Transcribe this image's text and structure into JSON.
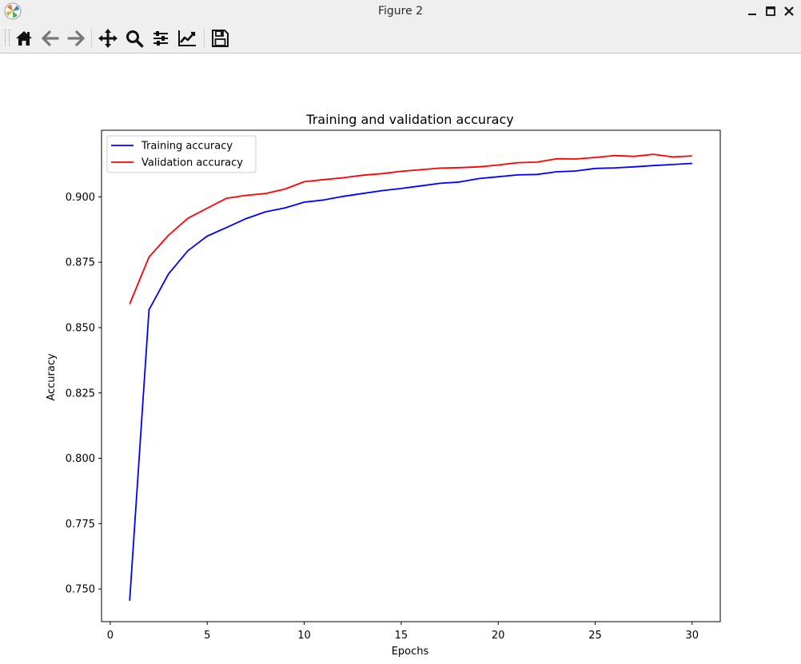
{
  "window": {
    "title": "Figure 2"
  },
  "toolbar": {
    "icons": [
      "home-icon",
      "back-arrow-icon",
      "forward-arrow-icon",
      "pan-move-icon",
      "zoom-magnifier-icon",
      "subplots-sliders-icon",
      "customize-chart-icon",
      "save-floppy-icon"
    ]
  },
  "colors": {
    "training": "#0000ff",
    "validation": "#ff0000",
    "chrome": "#efefef"
  },
  "chart_data": {
    "type": "line",
    "title": "Training and validation accuracy",
    "xlabel": "Epochs",
    "ylabel": "Accuracy",
    "xlim": [
      -0.45,
      31.45
    ],
    "ylim": [
      0.7375,
      0.9255
    ],
    "xticks": [
      0,
      5,
      10,
      15,
      20,
      25,
      30
    ],
    "xtick_labels": [
      "0",
      "5",
      "10",
      "15",
      "20",
      "25",
      "30"
    ],
    "yticks": [
      0.75,
      0.775,
      0.8,
      0.825,
      0.85,
      0.875,
      0.9
    ],
    "ytick_labels": [
      "0.750",
      "0.775",
      "0.800",
      "0.825",
      "0.850",
      "0.875",
      "0.900"
    ],
    "grid": false,
    "legend_position": "upper-left",
    "x": [
      1,
      2,
      3,
      4,
      5,
      6,
      7,
      8,
      9,
      10,
      11,
      12,
      13,
      14,
      15,
      16,
      17,
      18,
      19,
      20,
      21,
      22,
      23,
      24,
      25,
      26,
      27,
      28,
      29,
      30
    ],
    "series": [
      {
        "name": "Training accuracy",
        "color": "#0000ff",
        "values": [
          0.7455,
          0.8568,
          0.8705,
          0.8794,
          0.885,
          0.8883,
          0.8917,
          0.8943,
          0.8958,
          0.898,
          0.8988,
          0.9002,
          0.9013,
          0.9024,
          0.9032,
          0.9042,
          0.9052,
          0.9057,
          0.907,
          0.9077,
          0.9084,
          0.9086,
          0.9096,
          0.9099,
          0.9109,
          0.9111,
          0.9115,
          0.912,
          0.9124,
          0.9128
        ]
      },
      {
        "name": "Validation accuracy",
        "color": "#ff0000",
        "values": [
          0.859,
          0.877,
          0.8853,
          0.8918,
          0.8957,
          0.8995,
          0.9006,
          0.9013,
          0.903,
          0.9058,
          0.9066,
          0.9073,
          0.9083,
          0.9089,
          0.9098,
          0.9104,
          0.911,
          0.9112,
          0.9115,
          0.9122,
          0.9131,
          0.9133,
          0.9146,
          0.9145,
          0.9151,
          0.9158,
          0.9155,
          0.9163,
          0.9153,
          0.9157
        ]
      }
    ]
  }
}
